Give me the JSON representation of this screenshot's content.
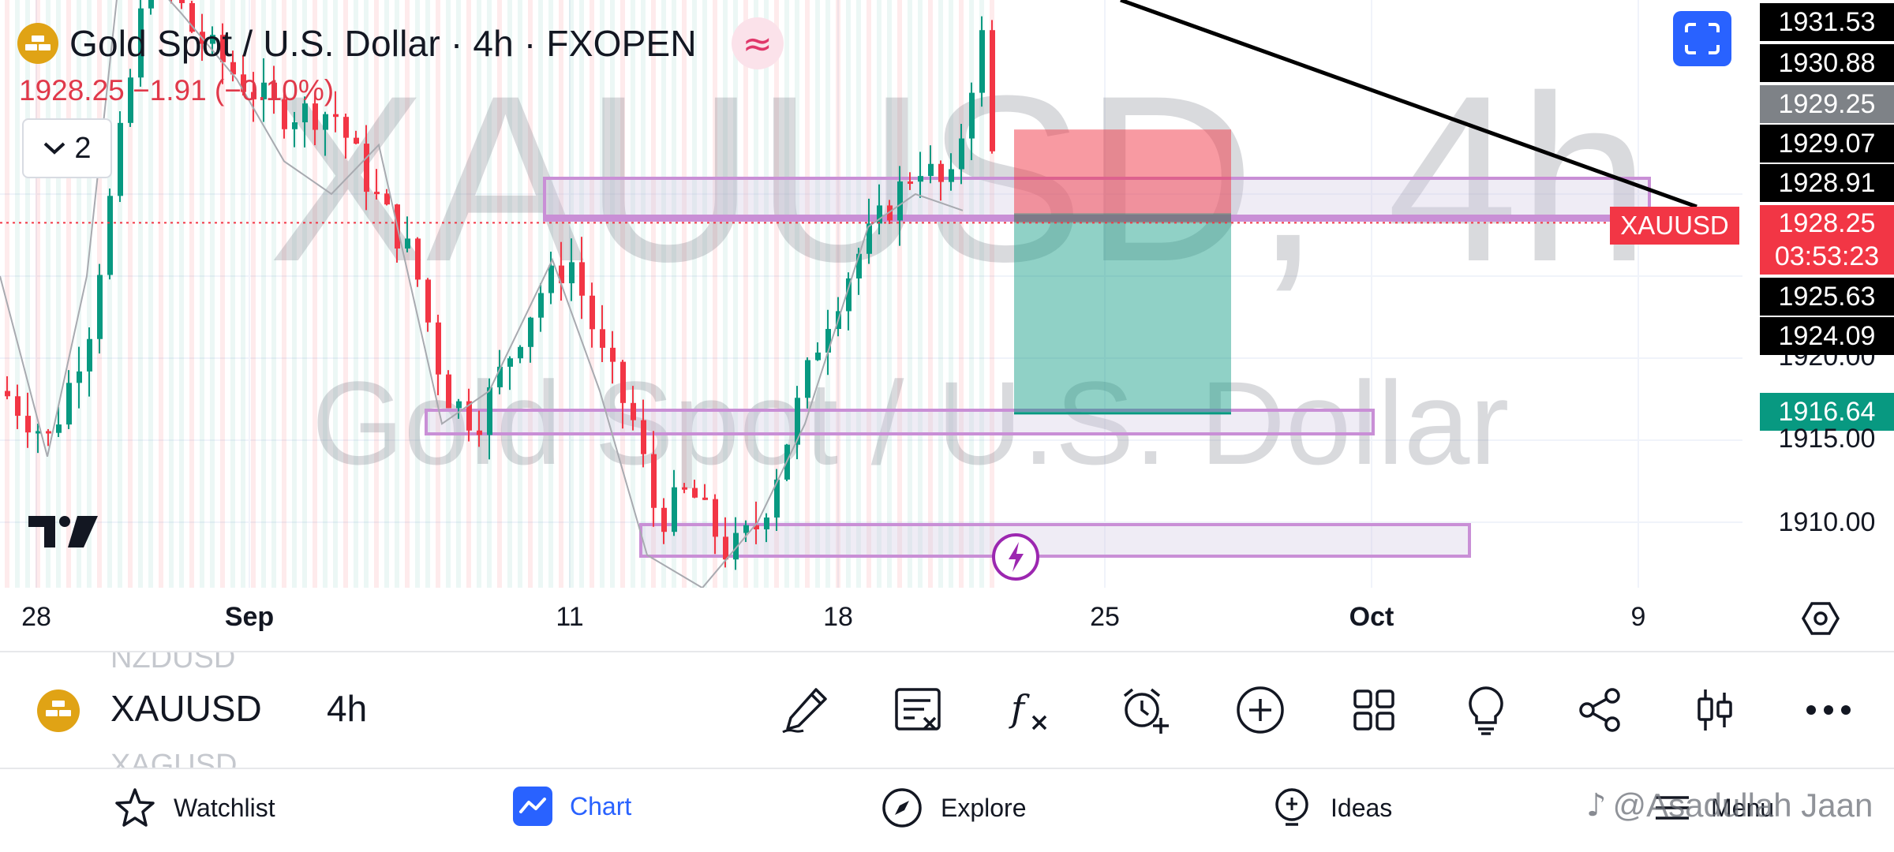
{
  "chart": {
    "symbol_title": "Gold Spot / U.S. Dollar · 4h · FXOPEN",
    "last_price": "1928.25",
    "change": "−1.91 (−0.10%)",
    "indicators_toggle_count": "2",
    "watermark_ticker": "XAUUSD, 4h",
    "watermark_name": "Gold Spot / U.S. Dollar",
    "price_labels": [
      {
        "value": "1931.53",
        "style": "dark"
      },
      {
        "value": "1930.88",
        "style": "dark"
      },
      {
        "value": "1929.25",
        "style": "grey"
      },
      {
        "value": "1929.07",
        "style": "dark"
      },
      {
        "value": "1928.91",
        "style": "dark"
      },
      {
        "value": "1925.63",
        "style": "dark"
      },
      {
        "value": "1924.09",
        "style": "dark"
      },
      {
        "value": "1916.64",
        "style": "green"
      }
    ],
    "current_price_tag": {
      "symbol": "XAUUSD",
      "price": "1928.25",
      "countdown": "03:53:23"
    },
    "price_axis_ticks": [
      "1920.00",
      "1915.00",
      "1910.00"
    ],
    "time_axis": [
      {
        "label": "28",
        "bold": false
      },
      {
        "label": "Sep",
        "bold": true
      },
      {
        "label": "11",
        "bold": false
      },
      {
        "label": "18",
        "bold": false
      },
      {
        "label": "25",
        "bold": false
      },
      {
        "label": "Oct",
        "bold": true
      },
      {
        "label": "9",
        "bold": false
      }
    ],
    "position": {
      "type": "short",
      "entry": 1928.25,
      "stop": 1931.53,
      "target": 1916.64
    },
    "colors": {
      "up": "#089981",
      "down": "#f23645",
      "zone": "#c98fd6",
      "trendline": "#000000",
      "accent": "#2962ff"
    }
  },
  "toolbar": {
    "symbol": "XAUUSD",
    "interval": "4h",
    "ghost_prev": "NZDUSD",
    "ghost_next": "XAGUSD",
    "icons": [
      "draw-pen-icon",
      "remove-drawings-icon",
      "indicators-fx-icon",
      "add-alert-icon",
      "add-icon",
      "layout-grid-icon",
      "lightbulb-icon",
      "share-icon",
      "candles-icon",
      "more-icon"
    ]
  },
  "nav": {
    "watchlist": "Watchlist",
    "chart": "Chart",
    "explore": "Explore",
    "ideas": "Ideas",
    "menu": "Menu"
  },
  "overlay_watermark": "@Asadullah Jaan"
}
